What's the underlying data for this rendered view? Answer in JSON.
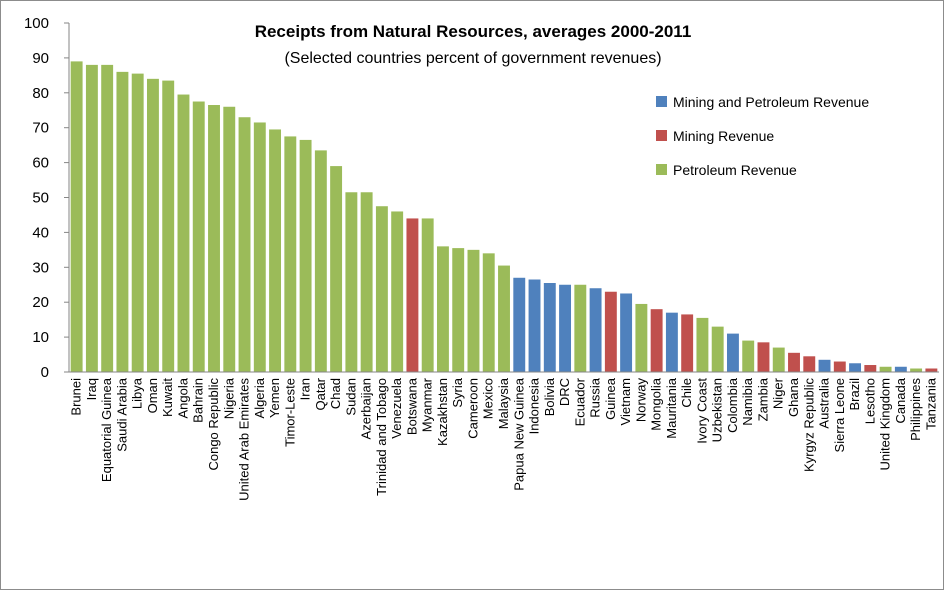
{
  "chart_data": {
    "type": "bar",
    "title": "Receipts from Natural Resources, averages 2000-2011",
    "subtitle": "(Selected countries percent of  government revenues)",
    "xlabel": "",
    "ylabel": "",
    "ylim": [
      0,
      100
    ],
    "yticks": [
      "0",
      "10",
      "20",
      "30",
      "40",
      "50",
      "60",
      "70",
      "80",
      "90",
      "100"
    ],
    "grid": false,
    "legend_position": "right",
    "series": [
      {
        "key": "mp",
        "name": "Mining and Petroleum Revenue",
        "color": "#4f81bd"
      },
      {
        "key": "m",
        "name": "Mining Revenue",
        "color": "#c0504d"
      },
      {
        "key": "p",
        "name": "Petroleum Revenue",
        "color": "#9bbb59"
      }
    ],
    "categories": [
      "Brunei",
      "Iraq",
      "Equatorial Guinea",
      "Saudi Arabia",
      "Libya",
      "Oman",
      "Kuwait",
      "Angola",
      "Bahrain",
      "Congo Republic",
      "Nigeria",
      "United Arab Emirates",
      "Algeria",
      "Yemen",
      "Timor-Leste",
      "Iran",
      "Qatar",
      "Chad",
      "Sudan",
      "Azerbaijan",
      "Trinidad and Tobago",
      "Venezuela",
      "Botswana",
      "Myanmar",
      "Kazakhstan",
      "Syria",
      "Cameroon",
      "Mexico",
      "Malaysia",
      "Papua New Guinea",
      "Indonesia",
      "Bolivia",
      "DRC",
      "Ecuador",
      "Russia",
      "Guinea",
      "Vietnam",
      "Norway",
      "Mongolia",
      "Mauritania",
      "Chile",
      "Ivory Coast",
      "Uzbekistan",
      "Colombia",
      "Namibia",
      "Zambia",
      "Niger",
      "Ghana",
      "Kyrgyz Republic",
      "Australia",
      "Sierra Leone",
      "Brazil",
      "Lesotho",
      "United Kingdom",
      "Canada",
      "Philippines",
      "Tanzania"
    ],
    "values": [
      89,
      88,
      88,
      86,
      85.5,
      84,
      83.5,
      79.5,
      77.5,
      76.5,
      76,
      73,
      71.5,
      69.5,
      67.5,
      66.5,
      63.5,
      59,
      51.5,
      51.5,
      47.5,
      46,
      44,
      44,
      36,
      35.5,
      35,
      34,
      30.5,
      27,
      26.5,
      25.5,
      25,
      25,
      24,
      23,
      22.5,
      19.5,
      18,
      17,
      16.5,
      15.5,
      13,
      11,
      9,
      8.5,
      7,
      5.5,
      4.5,
      3.5,
      3,
      2.5,
      2,
      1.5,
      1.5,
      1,
      1
    ],
    "types": [
      "p",
      "p",
      "p",
      "p",
      "p",
      "p",
      "p",
      "p",
      "p",
      "p",
      "p",
      "p",
      "p",
      "p",
      "p",
      "p",
      "p",
      "p",
      "p",
      "p",
      "p",
      "p",
      "m",
      "p",
      "p",
      "p",
      "p",
      "p",
      "p",
      "mp",
      "mp",
      "mp",
      "mp",
      "p",
      "mp",
      "m",
      "mp",
      "p",
      "m",
      "mp",
      "m",
      "p",
      "p",
      "mp",
      "p",
      "m",
      "p",
      "m",
      "m",
      "mp",
      "m",
      "mp",
      "m",
      "p",
      "mp",
      "p",
      "m"
    ]
  }
}
